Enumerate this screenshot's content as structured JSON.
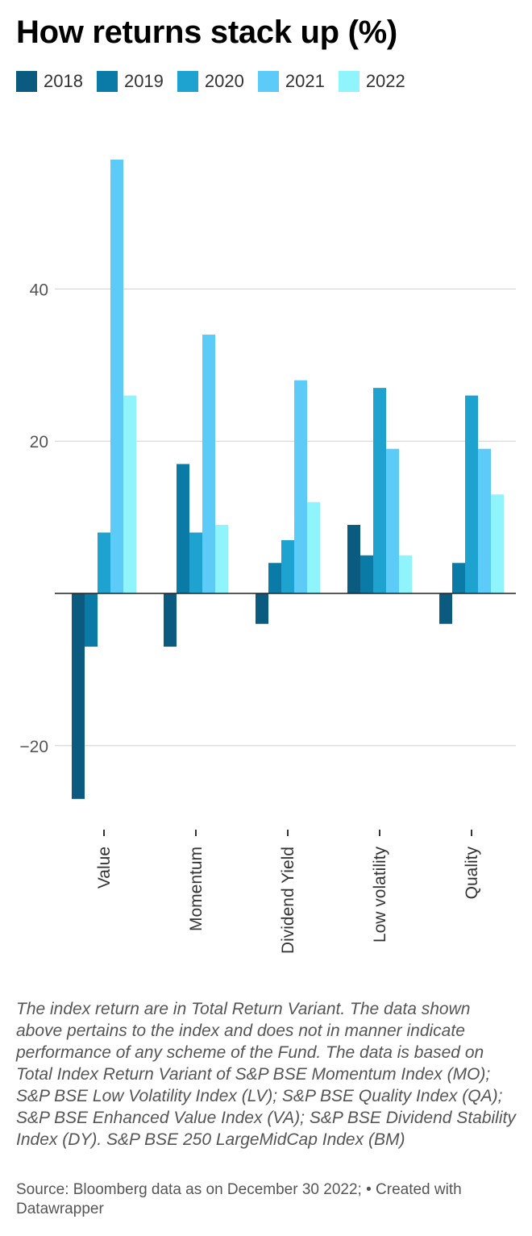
{
  "header": {
    "title": "How returns stack up (%)"
  },
  "chart_data": {
    "type": "bar",
    "title": "How returns stack up (%)",
    "categories": [
      "Value",
      "Momentum",
      "Dividend Yield",
      "Low volatility",
      "Quality"
    ],
    "series": [
      {
        "name": "2018",
        "color": "#0b5a80",
        "values": [
          -27,
          -7,
          -4,
          9,
          -4
        ]
      },
      {
        "name": "2019",
        "color": "#0a7aa6",
        "values": [
          -7,
          17,
          4,
          5,
          4
        ]
      },
      {
        "name": "2020",
        "color": "#1ea3d0",
        "values": [
          8,
          8,
          7,
          27,
          26
        ]
      },
      {
        "name": "2021",
        "color": "#5ccbf7",
        "values": [
          57,
          34,
          28,
          19,
          19
        ]
      },
      {
        "name": "2022",
        "color": "#8ff4fc",
        "values": [
          26,
          9,
          12,
          5,
          13
        ]
      }
    ],
    "y_ticks": [
      40,
      20,
      -20
    ],
    "ylim": [
      -29,
      58
    ],
    "grid": true,
    "legend_position": "top-left"
  },
  "footer": {
    "note": "The index return are in Total Return Variant. The data shown above pertains to the index and does not in manner indicate performance of any scheme of the Fund. The data is based on Total Index Return Variant of S&P BSE Momentum Index (MO); S&P BSE Low Volatility Index (LV); S&P BSE Quality Index (QA); S&P BSE Enhanced Value Index (VA); S&P BSE Dividend Stability Index (DY). S&P BSE 250 LargeMidCap Index (BM)",
    "source": "Source: Bloomberg data as on December 30 2022; • Created with Datawrapper"
  }
}
